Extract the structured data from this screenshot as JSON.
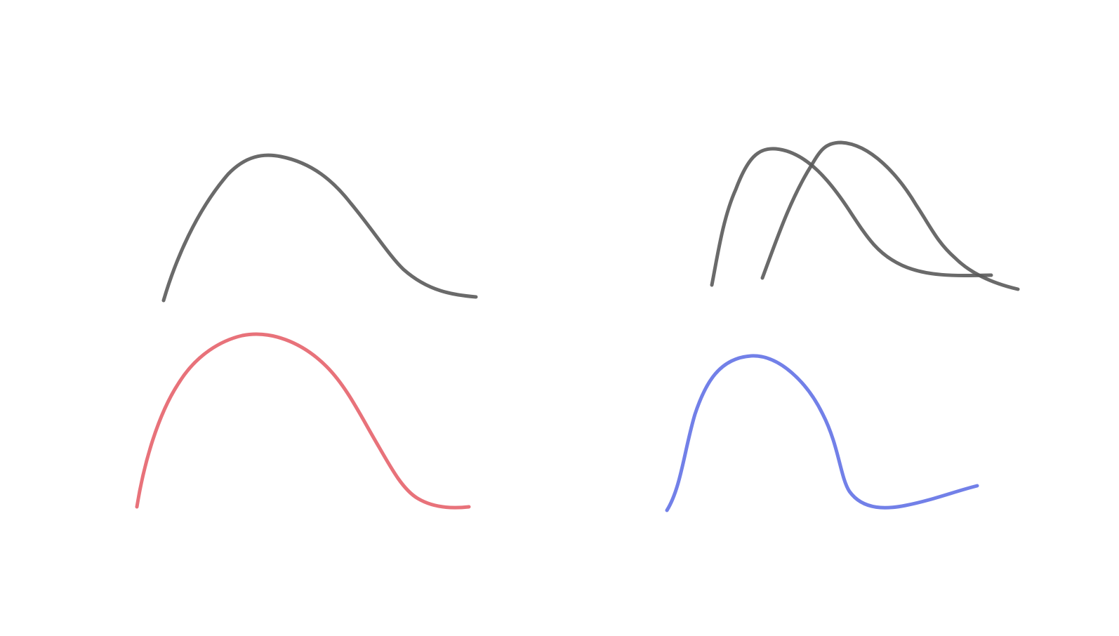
{
  "canvas": {
    "background": "#ffffff"
  },
  "strokes": [
    {
      "name": "top-left-curve-stroke",
      "color": "#5a5a5a",
      "opacity": 0.9
    },
    {
      "name": "top-right-curve-stroke-a",
      "color": "#5a5a5a",
      "opacity": 0.9
    },
    {
      "name": "top-right-curve-stroke-b",
      "color": "#5a5a5a",
      "opacity": 0.9
    },
    {
      "name": "bottom-left-curve-stroke",
      "color": "#e8727a",
      "opacity": 1
    },
    {
      "name": "bottom-right-curve-stroke",
      "color": "#7280e8",
      "opacity": 1
    }
  ]
}
